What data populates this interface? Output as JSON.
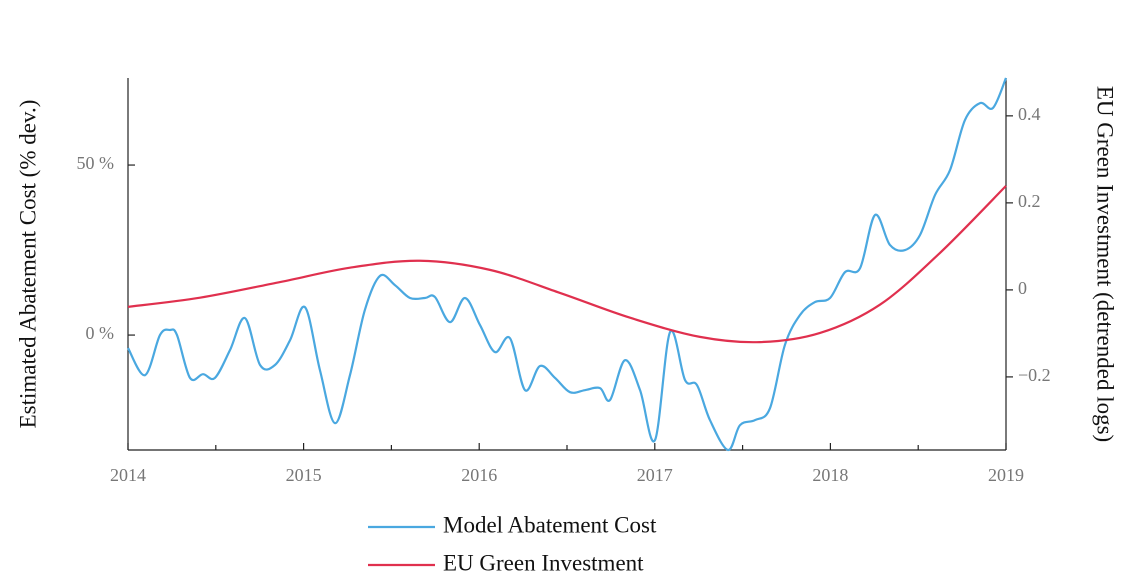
{
  "chart_data": {
    "type": "line",
    "y_label": "Estimated Abatement Cost (% dev.)",
    "y2_label": "EU Green Investment (detrended logs)",
    "xlim": [
      2014,
      2019
    ],
    "xticks": [
      2014,
      2015,
      2016,
      2017,
      2018,
      2019
    ],
    "ylim": [
      -33.8,
      75.6
    ],
    "yticks": [
      {
        "value": 0,
        "label": "0 %"
      },
      {
        "value": 50,
        "label": "50 %"
      }
    ],
    "y2lim": [
      -0.368,
      0.487
    ],
    "y2ticks": [
      {
        "value": -0.2,
        "label": "−0.2"
      },
      0,
      0.2,
      0.4
    ],
    "series": [
      {
        "name": "Model Abatement Cost",
        "color": "#4aa8e0",
        "x": [
          2014.0,
          2014.097,
          2014.182,
          2014.239,
          2014.279,
          2014.353,
          2014.427,
          2014.495,
          2014.581,
          2014.666,
          2014.752,
          2014.837,
          2014.923,
          2015.008,
          2015.093,
          2015.179,
          2015.264,
          2015.349,
          2015.435,
          2015.52,
          2015.606,
          2015.691,
          2015.748,
          2015.834,
          2015.919,
          2016.005,
          2016.09,
          2016.175,
          2016.261,
          2016.346,
          2016.432,
          2016.517,
          2016.602,
          2016.688,
          2016.745,
          2016.83,
          2016.916,
          2017.001,
          2017.087,
          2017.172,
          2017.24,
          2017.314,
          2017.417,
          2017.485,
          2017.571,
          2017.656,
          2017.741,
          2017.827,
          2017.912,
          2017.998,
          2018.083,
          2018.169,
          2018.254,
          2018.339,
          2018.425,
          2018.51,
          2018.596,
          2018.681,
          2018.766,
          2018.852,
          2018.926,
          2019.0
        ],
        "values": [
          -3.8,
          -11.8,
          0,
          1.5,
          0,
          -12.6,
          -11.5,
          -12.6,
          -4.4,
          5,
          -8.8,
          -8.8,
          -1.5,
          8.2,
          -10.3,
          -25.9,
          -11.8,
          7.4,
          17.4,
          14.7,
          10.9,
          10.9,
          11.2,
          3.8,
          10.9,
          2.9,
          -5,
          -0.9,
          -16.2,
          -9.1,
          -12.6,
          -16.8,
          -16.2,
          -15.6,
          -19.1,
          -7.4,
          -16.2,
          -30.9,
          0.9,
          -13.2,
          -14.7,
          -25,
          -33.8,
          -26.5,
          -25,
          -21.5,
          -2.9,
          5.9,
          9.7,
          10.9,
          18.5,
          19.7,
          35.3,
          26.5,
          25,
          29.4,
          41.2,
          48.5,
          63.2,
          68.2,
          66.8,
          75.6
        ]
      },
      {
        "name": "EU Green Investment",
        "color": "#e0304e",
        "axis": "y2",
        "x": [
          2014.0,
          2014.41,
          2014.866,
          2015.264,
          2015.663,
          2016.061,
          2016.46,
          2016.859,
          2017.257,
          2017.599,
          2017.941,
          2018.282,
          2018.624,
          2019.0
        ],
        "values": [
          -0.039,
          -0.018,
          0.018,
          0.051,
          0.067,
          0.046,
          -0.007,
          -0.064,
          -0.108,
          -0.12,
          -0.099,
          -0.034,
          0.085,
          0.239
        ]
      }
    ]
  }
}
